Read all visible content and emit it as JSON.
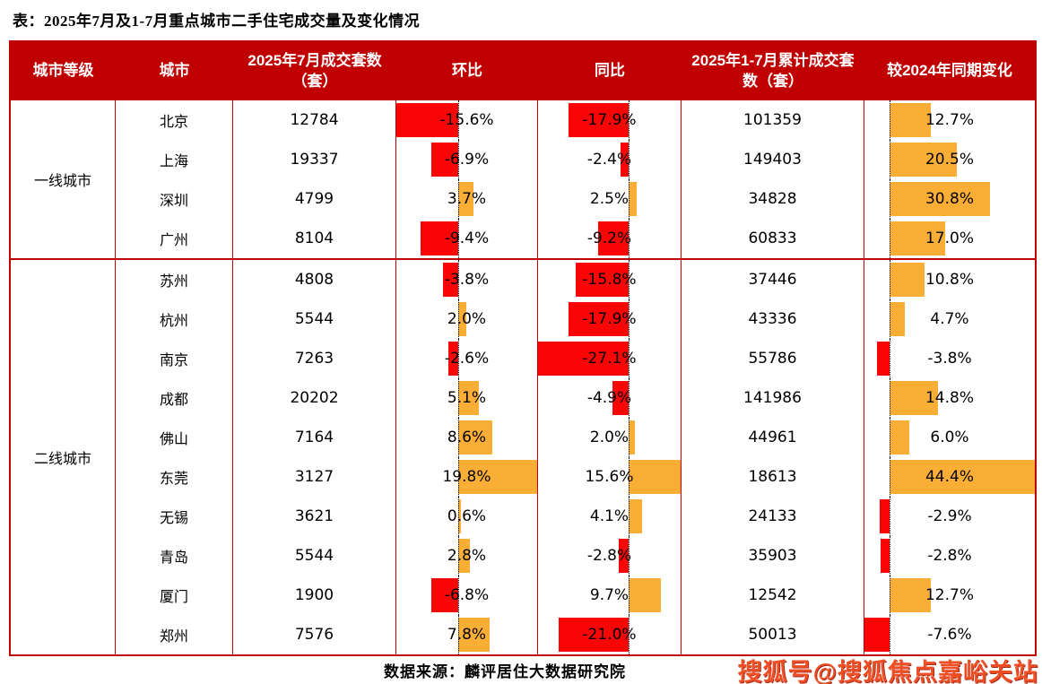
{
  "title": "表：2025年7月及1-7月重点城市二手住宅成交量及变化情况",
  "footer": {
    "source": "数据来源：麟评居住大数据研究院",
    "watermark": "搜狐号@搜狐焦点嘉峪关站"
  },
  "colors": {
    "grid": "#C00000",
    "header_bg": "#C00000",
    "header_text": "#FFFFFF",
    "negative_bar": "#F90505",
    "positive_bar": "#FBAE35",
    "text": "#000000"
  },
  "table": {
    "headers": [
      "城市等级",
      "城市",
      "2025年7月成交套数（套）",
      "环比",
      "同比",
      "2025年1-7月累计成交套数（套）",
      "较2024年同期变化"
    ],
    "bar_axes": {
      "mom": {
        "min": -15.6,
        "max": 19.8
      },
      "yoy": {
        "min": -27.1,
        "max": 15.6
      },
      "cum_change": {
        "min": -7.6,
        "max": 44.4
      }
    },
    "groups": [
      {
        "tier": "一线城市",
        "rows": [
          {
            "city": "北京",
            "july": "12784",
            "mom": -15.6,
            "yoy": -17.9,
            "cum": "101359",
            "cum_change": 12.7
          },
          {
            "city": "上海",
            "july": "19337",
            "mom": -6.9,
            "yoy": -2.4,
            "cum": "149403",
            "cum_change": 20.5
          },
          {
            "city": "深圳",
            "july": "4799",
            "mom": 3.7,
            "yoy": 2.5,
            "cum": "34828",
            "cum_change": 30.8
          },
          {
            "city": "广州",
            "july": "8104",
            "mom": -9.4,
            "yoy": -9.2,
            "cum": "60833",
            "cum_change": 17.0
          }
        ]
      },
      {
        "tier": "二线城市",
        "rows": [
          {
            "city": "苏州",
            "july": "4808",
            "mom": -3.8,
            "yoy": -15.8,
            "cum": "37446",
            "cum_change": 10.8
          },
          {
            "city": "杭州",
            "july": "5544",
            "mom": 2.0,
            "yoy": -17.9,
            "cum": "43336",
            "cum_change": 4.7
          },
          {
            "city": "南京",
            "july": "7263",
            "mom": -2.6,
            "yoy": -27.1,
            "cum": "55786",
            "cum_change": -3.8
          },
          {
            "city": "成都",
            "july": "20202",
            "mom": 5.1,
            "yoy": -4.9,
            "cum": "141986",
            "cum_change": 14.8
          },
          {
            "city": "佛山",
            "july": "7164",
            "mom": 8.6,
            "yoy": 2.0,
            "cum": "44961",
            "cum_change": 6.0
          },
          {
            "city": "东莞",
            "july": "3127",
            "mom": 19.8,
            "yoy": 15.6,
            "cum": "18613",
            "cum_change": 44.4
          },
          {
            "city": "无锡",
            "july": "3621",
            "mom": 0.6,
            "yoy": 4.1,
            "cum": "24133",
            "cum_change": -2.9
          },
          {
            "city": "青岛",
            "july": "5544",
            "mom": 2.8,
            "yoy": -2.8,
            "cum": "35903",
            "cum_change": -2.8
          },
          {
            "city": "厦门",
            "july": "1900",
            "mom": -6.8,
            "yoy": 9.7,
            "cum": "12542",
            "cum_change": 12.7
          },
          {
            "city": "郑州",
            "july": "7576",
            "mom": 7.8,
            "yoy": -21.0,
            "cum": "50013",
            "cum_change": -7.6
          }
        ]
      }
    ]
  },
  "chart_data": {
    "type": "table",
    "title": "表：2025年7月及1-7月重点城市二手住宅成交量及变化情况",
    "columns": [
      "城市等级",
      "城市",
      "2025年7月成交套数（套）",
      "环比(%)",
      "同比(%)",
      "2025年1-7月累计成交套数（套）",
      "较2024年同期变化(%)"
    ],
    "rows": [
      [
        "一线城市",
        "北京",
        12784,
        -15.6,
        -17.9,
        101359,
        12.7
      ],
      [
        "一线城市",
        "上海",
        19337,
        -6.9,
        -2.4,
        149403,
        20.5
      ],
      [
        "一线城市",
        "深圳",
        4799,
        3.7,
        2.5,
        34828,
        30.8
      ],
      [
        "一线城市",
        "广州",
        8104,
        -9.4,
        -9.2,
        60833,
        17.0
      ],
      [
        "二线城市",
        "苏州",
        4808,
        -3.8,
        -15.8,
        37446,
        10.8
      ],
      [
        "二线城市",
        "杭州",
        5544,
        2.0,
        -17.9,
        43336,
        4.7
      ],
      [
        "二线城市",
        "南京",
        7263,
        -2.6,
        -27.1,
        55786,
        -3.8
      ],
      [
        "二线城市",
        "成都",
        20202,
        5.1,
        -4.9,
        141986,
        14.8
      ],
      [
        "二线城市",
        "佛山",
        7164,
        8.6,
        2.0,
        44961,
        6.0
      ],
      [
        "二线城市",
        "东莞",
        3127,
        19.8,
        15.6,
        18613,
        44.4
      ],
      [
        "二线城市",
        "无锡",
        3621,
        0.6,
        4.1,
        24133,
        -2.9
      ],
      [
        "二线城市",
        "青岛",
        5544,
        2.8,
        -2.8,
        35903,
        -2.8
      ],
      [
        "二线城市",
        "厦门",
        1900,
        -6.8,
        9.7,
        12542,
        12.7
      ],
      [
        "二线城市",
        "郑州",
        7576,
        7.8,
        -21.0,
        50013,
        -7.6
      ]
    ],
    "bar_columns": [
      "环比",
      "同比",
      "较2024年同期变化"
    ],
    "bar_axes": {
      "环比": [
        -15.6,
        19.8
      ],
      "同比": [
        -27.1,
        15.6
      ],
      "较2024年同期变化": [
        -7.6,
        44.4
      ]
    },
    "bar_colors": {
      "negative": "#F90505",
      "positive": "#FBAE35"
    },
    "source": "数据来源：麟评居住大数据研究院"
  }
}
